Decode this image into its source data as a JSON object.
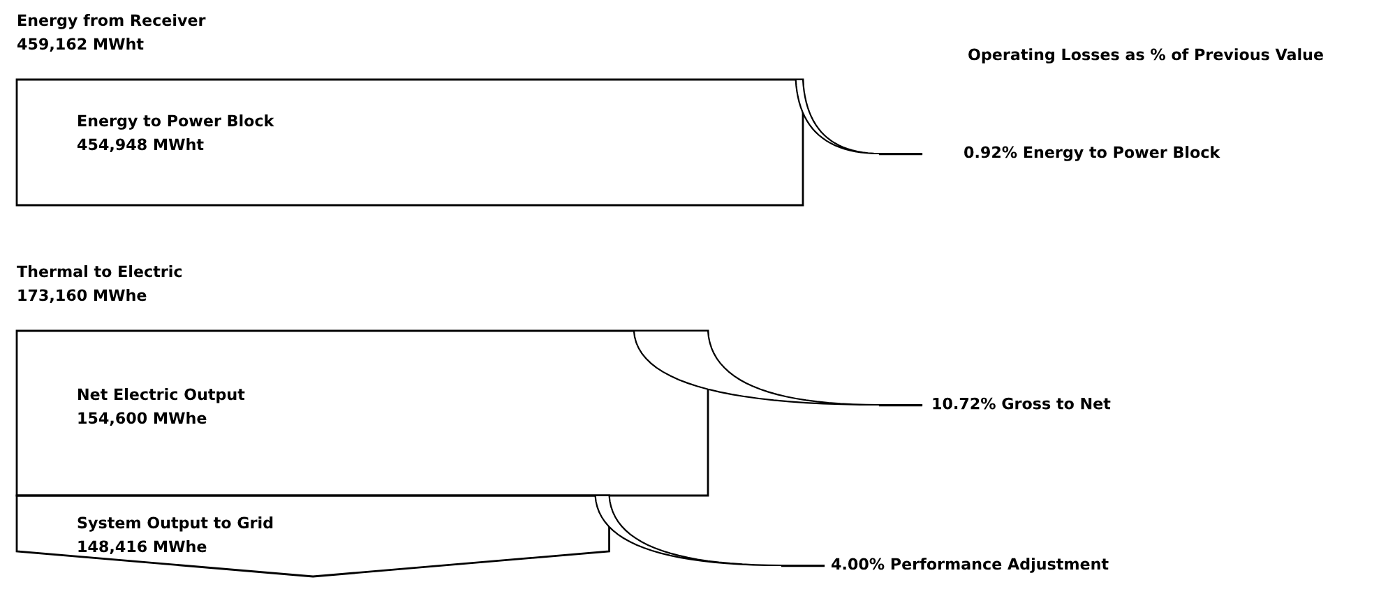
{
  "chart_data": {
    "type": "other",
    "categories": [
      "Energy from Receiver",
      "Energy to Power Block",
      "Thermal to Electric",
      "Net Electric Output",
      "System Output to Grid"
    ],
    "values": [
      459162,
      454948,
      173160,
      154600,
      148416
    ],
    "value_labels": [
      "459,162 MWht",
      "454,948 MWht",
      "173,160 MWhe",
      "154,600 MWhe",
      "148,416 MWhe"
    ],
    "annotations": [
      "Operating Losses as % of Previous Value",
      "0.92% Energy to Power Block",
      "10.72% Gross to Net",
      "4.00% Performance Adjustment"
    ]
  }
}
